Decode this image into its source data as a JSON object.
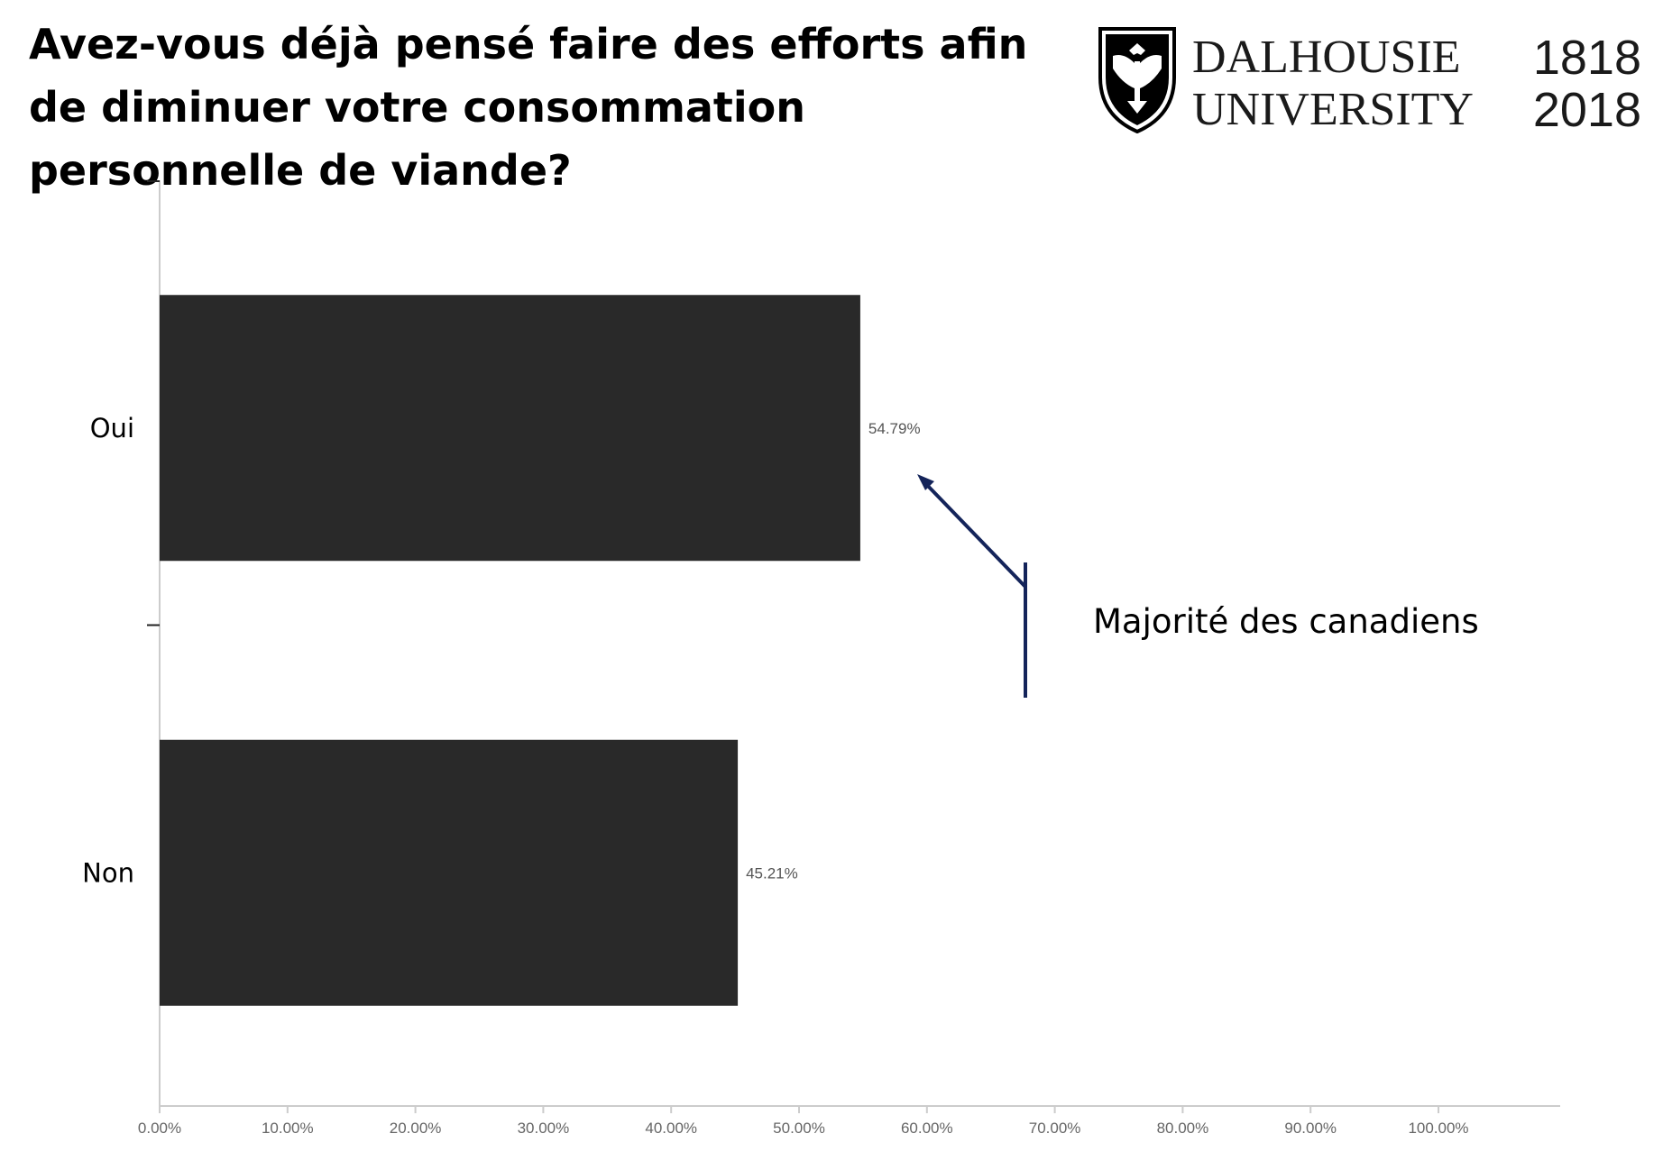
{
  "title": "Avez-vous déjà pensé faire des efforts afin de diminuer votre consommation personnelle de viande?",
  "logo": {
    "line1": "DALHOUSIE",
    "line2": "UNIVERSITY",
    "year_top": "1818",
    "year_bottom": "2018",
    "icon": "eagle-shield-icon"
  },
  "colors": {
    "bar": "#292929",
    "annotation": "#14245a",
    "axis": "#cccccc"
  },
  "chart_data": {
    "type": "bar",
    "orientation": "horizontal",
    "categories": [
      "Oui",
      "Non"
    ],
    "values": [
      54.79,
      45.21
    ],
    "value_labels": [
      "54.79%",
      "45.21%"
    ],
    "xlim": [
      0,
      100
    ],
    "xticks": [
      0,
      10,
      20,
      30,
      40,
      50,
      60,
      70,
      80,
      90,
      100
    ],
    "xtick_labels": [
      "0.00%",
      "10.00%",
      "20.00%",
      "30.00%",
      "40.00%",
      "50.00%",
      "60.00%",
      "70.00%",
      "80.00%",
      "90.00%",
      "100.00%"
    ],
    "annotation": {
      "text": "Majorité des canadiens",
      "points_to": "Oui"
    },
    "grid": false,
    "legend": "none"
  }
}
